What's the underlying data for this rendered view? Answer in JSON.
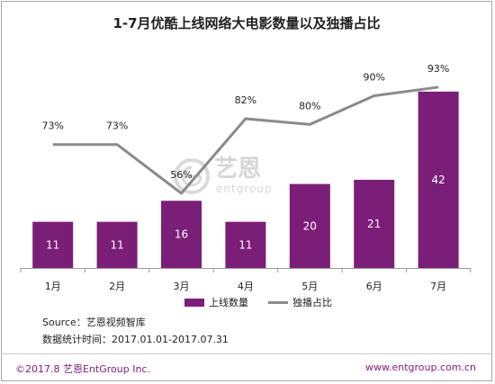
{
  "chart_data": {
    "type": "bar",
    "title": "1-7月优酷上线网络大电影数量以及独播占比",
    "categories": [
      "1月",
      "2月",
      "3月",
      "4月",
      "5月",
      "6月",
      "7月"
    ],
    "series": [
      {
        "name": "上线数量",
        "type": "bar",
        "values": [
          11,
          11,
          16,
          11,
          20,
          21,
          42
        ],
        "labels": [
          "11",
          "11",
          "16",
          "11",
          "20",
          "21",
          "42"
        ],
        "color": "#7b1e78"
      },
      {
        "name": "独播占比",
        "type": "line",
        "values": [
          73,
          73,
          56,
          82,
          80,
          90,
          93
        ],
        "labels": [
          "73%",
          "73%",
          "56%",
          "82%",
          "80%",
          "90%",
          "93%"
        ],
        "color": "#8a8a8a"
      }
    ],
    "legend_position": "bottom",
    "grid": false
  },
  "notes": {
    "source": "Source：艺恩视频智库",
    "period": "数据统计时间：2017.01.01-2017.07.31"
  },
  "watermark": {
    "cn": "艺恩",
    "en": "entgroup",
    "icon": "entgroup-logo-icon"
  },
  "footer": {
    "copyright": "©2017.8 艺恩EntGroup Inc.",
    "website": "www.entgroup.com.cn"
  }
}
